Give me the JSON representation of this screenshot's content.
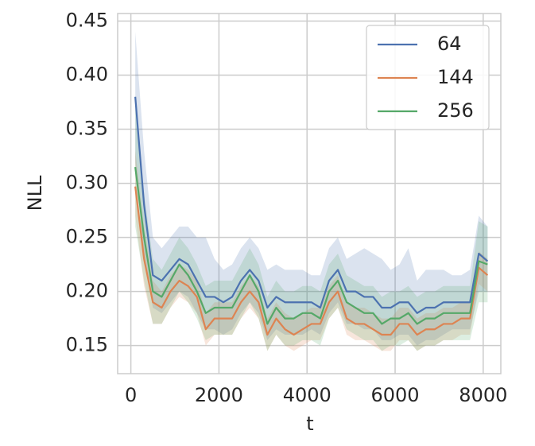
{
  "chart_data": {
    "type": "line",
    "xlabel": "t",
    "ylabel": "NLL",
    "x": [
      100,
      300,
      500,
      700,
      900,
      1100,
      1300,
      1500,
      1700,
      1900,
      2100,
      2300,
      2500,
      2700,
      2900,
      3100,
      3300,
      3500,
      3700,
      3900,
      4100,
      4300,
      4500,
      4700,
      4900,
      5100,
      5300,
      5500,
      5700,
      5900,
      6100,
      6300,
      6500,
      6700,
      6900,
      7100,
      7300,
      7500,
      7700,
      7900,
      8100
    ],
    "series": [
      {
        "name": "64",
        "color": "#4c72b0",
        "values": [
          0.38,
          0.28,
          0.215,
          0.21,
          0.22,
          0.23,
          0.225,
          0.21,
          0.195,
          0.195,
          0.19,
          0.195,
          0.21,
          0.22,
          0.21,
          0.185,
          0.195,
          0.19,
          0.19,
          0.19,
          0.19,
          0.185,
          0.21,
          0.22,
          0.2,
          0.2,
          0.195,
          0.195,
          0.185,
          0.185,
          0.19,
          0.19,
          0.18,
          0.185,
          0.185,
          0.19,
          0.19,
          0.19,
          0.19,
          0.235,
          0.228
        ],
        "upper": [
          0.44,
          0.33,
          0.25,
          0.24,
          0.25,
          0.26,
          0.26,
          0.25,
          0.25,
          0.23,
          0.22,
          0.225,
          0.24,
          0.25,
          0.24,
          0.22,
          0.225,
          0.22,
          0.22,
          0.22,
          0.215,
          0.215,
          0.24,
          0.25,
          0.23,
          0.235,
          0.24,
          0.235,
          0.23,
          0.22,
          0.225,
          0.24,
          0.21,
          0.22,
          0.22,
          0.22,
          0.215,
          0.215,
          0.22,
          0.27,
          0.26
        ],
        "lower": [
          0.32,
          0.23,
          0.185,
          0.18,
          0.19,
          0.2,
          0.195,
          0.18,
          0.165,
          0.165,
          0.16,
          0.165,
          0.18,
          0.19,
          0.18,
          0.155,
          0.165,
          0.16,
          0.16,
          0.16,
          0.165,
          0.16,
          0.18,
          0.19,
          0.17,
          0.17,
          0.165,
          0.165,
          0.155,
          0.155,
          0.16,
          0.16,
          0.15,
          0.155,
          0.155,
          0.16,
          0.165,
          0.165,
          0.165,
          0.2,
          0.2
        ]
      },
      {
        "name": "144",
        "color": "#dd8452",
        "values": [
          0.297,
          0.23,
          0.19,
          0.185,
          0.2,
          0.21,
          0.205,
          0.195,
          0.165,
          0.175,
          0.175,
          0.175,
          0.19,
          0.2,
          0.19,
          0.16,
          0.175,
          0.165,
          0.16,
          0.165,
          0.17,
          0.17,
          0.19,
          0.2,
          0.175,
          0.17,
          0.17,
          0.165,
          0.16,
          0.16,
          0.17,
          0.17,
          0.16,
          0.165,
          0.165,
          0.17,
          0.17,
          0.175,
          0.175,
          0.222,
          0.215
        ],
        "upper": [
          0.33,
          0.26,
          0.21,
          0.2,
          0.215,
          0.225,
          0.22,
          0.21,
          0.18,
          0.19,
          0.19,
          0.19,
          0.205,
          0.215,
          0.205,
          0.175,
          0.19,
          0.18,
          0.175,
          0.18,
          0.185,
          0.185,
          0.205,
          0.215,
          0.19,
          0.185,
          0.185,
          0.18,
          0.175,
          0.175,
          0.185,
          0.185,
          0.175,
          0.18,
          0.18,
          0.185,
          0.185,
          0.19,
          0.19,
          0.237,
          0.23
        ],
        "lower": [
          0.27,
          0.205,
          0.17,
          0.17,
          0.185,
          0.195,
          0.19,
          0.18,
          0.15,
          0.16,
          0.16,
          0.16,
          0.175,
          0.185,
          0.175,
          0.145,
          0.16,
          0.15,
          0.145,
          0.15,
          0.155,
          0.155,
          0.175,
          0.185,
          0.16,
          0.155,
          0.155,
          0.15,
          0.145,
          0.145,
          0.155,
          0.155,
          0.145,
          0.15,
          0.15,
          0.155,
          0.155,
          0.16,
          0.16,
          0.207,
          0.2
        ]
      },
      {
        "name": "256",
        "color": "#55a868",
        "values": [
          0.315,
          0.25,
          0.2,
          0.195,
          0.21,
          0.225,
          0.215,
          0.2,
          0.18,
          0.185,
          0.185,
          0.185,
          0.2,
          0.215,
          0.2,
          0.17,
          0.185,
          0.175,
          0.175,
          0.18,
          0.18,
          0.175,
          0.2,
          0.21,
          0.19,
          0.185,
          0.18,
          0.18,
          0.17,
          0.175,
          0.175,
          0.18,
          0.17,
          0.175,
          0.175,
          0.18,
          0.18,
          0.18,
          0.18,
          0.228,
          0.225
        ],
        "upper": [
          0.37,
          0.29,
          0.23,
          0.22,
          0.235,
          0.25,
          0.24,
          0.225,
          0.205,
          0.21,
          0.21,
          0.21,
          0.225,
          0.24,
          0.225,
          0.195,
          0.21,
          0.2,
          0.2,
          0.205,
          0.205,
          0.2,
          0.225,
          0.235,
          0.215,
          0.21,
          0.205,
          0.205,
          0.195,
          0.2,
          0.2,
          0.205,
          0.195,
          0.2,
          0.2,
          0.205,
          0.205,
          0.205,
          0.205,
          0.265,
          0.26
        ],
        "lower": [
          0.26,
          0.21,
          0.17,
          0.17,
          0.185,
          0.2,
          0.19,
          0.175,
          0.155,
          0.16,
          0.16,
          0.16,
          0.175,
          0.19,
          0.175,
          0.145,
          0.16,
          0.15,
          0.15,
          0.155,
          0.155,
          0.15,
          0.175,
          0.185,
          0.165,
          0.16,
          0.155,
          0.155,
          0.145,
          0.15,
          0.15,
          0.155,
          0.145,
          0.15,
          0.15,
          0.155,
          0.155,
          0.155,
          0.155,
          0.19,
          0.19
        ]
      }
    ],
    "xlim": [
      -300,
      8400
    ],
    "ylim": [
      0.124,
      0.457
    ],
    "xticks": [
      0,
      2000,
      4000,
      6000,
      8000
    ],
    "yticks": [
      0.15,
      {
        "value": 0.2,
        "label": "0.20"
      },
      0.25,
      {
        "value": 0.3,
        "label": "0.30"
      },
      0.35,
      {
        "value": 0.4,
        "label": "0.40"
      },
      0.45
    ],
    "grid": true,
    "legend": "upper right",
    "band_opacity": 0.2
  }
}
